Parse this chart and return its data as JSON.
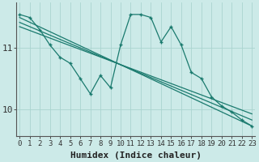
{
  "xlabel": "Humidex (Indice chaleur)",
  "ylabel": "",
  "bg_color": "#cceae8",
  "grid_color": "#aad4d0",
  "line_color": "#1a7a6e",
  "x_ticks": [
    0,
    1,
    2,
    3,
    4,
    5,
    6,
    7,
    8,
    9,
    10,
    11,
    12,
    13,
    14,
    15,
    16,
    17,
    18,
    19,
    20,
    21,
    22,
    23
  ],
  "y_ticks": [
    10,
    11
  ],
  "ylim": [
    9.55,
    11.75
  ],
  "xlim": [
    -0.3,
    23.3
  ],
  "series1_x": [
    0,
    1,
    2,
    3,
    4,
    5,
    6,
    7,
    8,
    9,
    10,
    11,
    12,
    13,
    14,
    15,
    16,
    17,
    18,
    19,
    20,
    21,
    22,
    23
  ],
  "series1_y": [
    11.55,
    11.5,
    11.3,
    11.05,
    10.85,
    10.75,
    10.5,
    10.25,
    10.55,
    10.35,
    11.05,
    11.55,
    11.55,
    11.5,
    11.1,
    11.35,
    11.05,
    10.6,
    10.5,
    10.2,
    10.05,
    9.95,
    9.82,
    9.72
  ],
  "series2_x": [
    0,
    23
  ],
  "series2_y": [
    11.5,
    9.72
  ],
  "series3_x": [
    0,
    23
  ],
  "series3_y": [
    11.42,
    9.82
  ],
  "series4_x": [
    0,
    23
  ],
  "series4_y": [
    11.35,
    9.92
  ],
  "xlabel_fontsize": 8,
  "ytick_fontsize": 8,
  "xtick_fontsize": 6.5
}
